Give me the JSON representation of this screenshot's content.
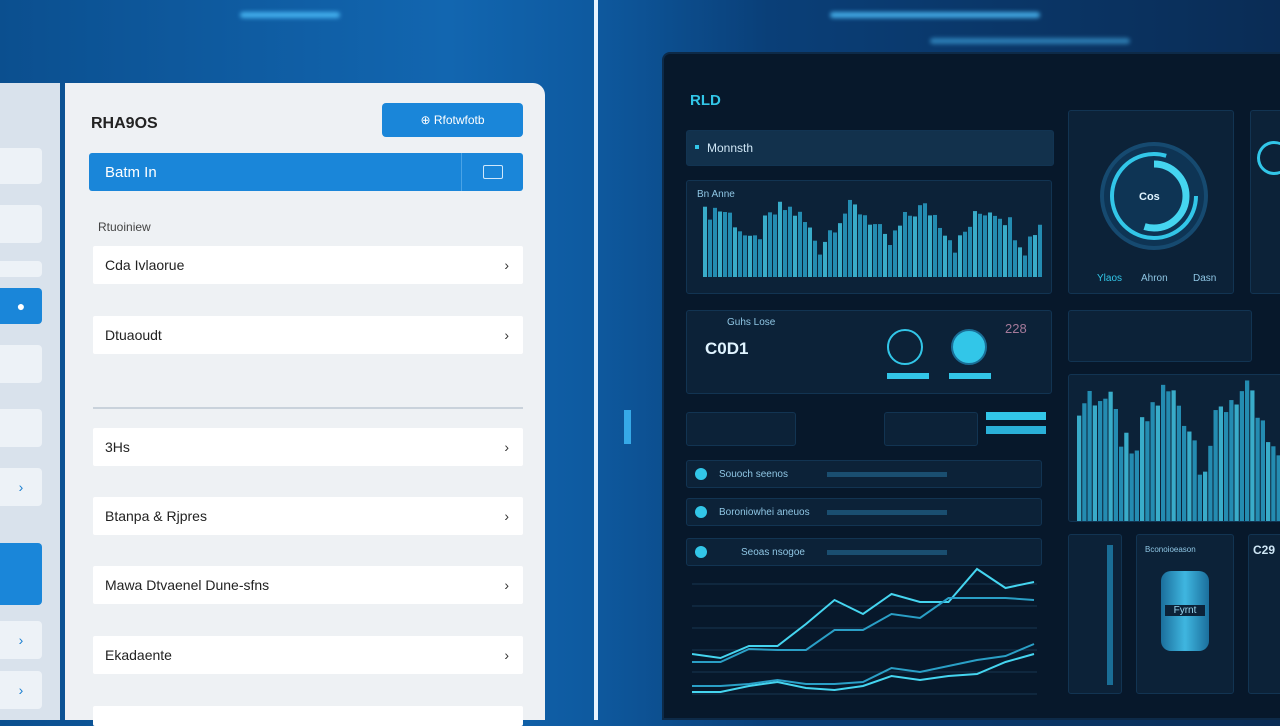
{
  "left": {
    "title": "RHA9OS",
    "action_button": "⊕ Rfotwfotb",
    "selected_item": "Batm In",
    "section_label": "Rtuoiniew",
    "items": [
      {
        "label": "Cda Ivlaorue"
      },
      {
        "label": "Dtuaoudt"
      },
      {
        "label": "3Hs"
      },
      {
        "label": "Btanpa & Rjpres"
      },
      {
        "label": "Mawa Dtvaenel Dune-sfns"
      },
      {
        "label": "Ekadaente"
      }
    ],
    "chevron": "›"
  },
  "dashboard": {
    "title": "RLD",
    "header_bar": "Monnsth",
    "chart_label": "Bn  Anne",
    "gauge_value": "Cos",
    "gauge_labels": [
      "Ylaos",
      "Ahron",
      "Dasn"
    ],
    "metric_value": "C0D1",
    "metric_label": "Guhs Lose",
    "side_value": "228",
    "rows": [
      "Souoch seenos",
      "Boroniowhei aneuos",
      "Seoas nsogoe"
    ],
    "cylinder_title": "Bconoioeason",
    "cylinder_label": "Fyrnt",
    "corner_value": "C29"
  },
  "colors": {
    "accent": "#1a86d9",
    "cyan": "#32c6e8",
    "dark": "#07182b"
  }
}
